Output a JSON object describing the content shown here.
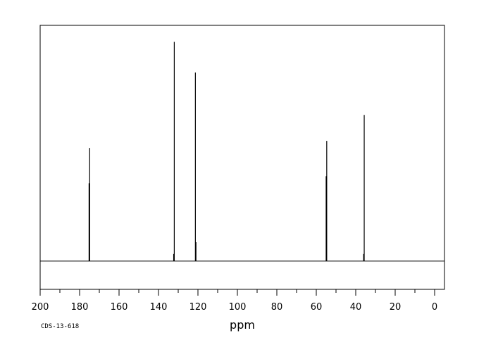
{
  "chart_data": {
    "type": "line",
    "title": "",
    "xlabel": "ppm",
    "ylabel": "",
    "xlim": [
      200,
      -5
    ],
    "x_reversed": true,
    "ylim": [
      -12,
      100
    ],
    "baseline": 0,
    "grid": false,
    "x_ticks": [
      200,
      180,
      160,
      140,
      120,
      100,
      80,
      60,
      40,
      20,
      0
    ],
    "x_tick_labels": [
      "200",
      "180",
      "160",
      "140",
      "120",
      "100",
      "80",
      "60",
      "40",
      "20",
      "0"
    ],
    "x_minor_step": 10,
    "peaks": [
      {
        "x": 174.9,
        "y": 48
      },
      {
        "x": 175.2,
        "y": 33
      },
      {
        "x": 132.0,
        "y": 93
      },
      {
        "x": 132.3,
        "y": 3
      },
      {
        "x": 121.3,
        "y": 80
      },
      {
        "x": 121.0,
        "y": 8
      },
      {
        "x": 54.7,
        "y": 51
      },
      {
        "x": 55.0,
        "y": 36
      },
      {
        "x": 35.7,
        "y": 62
      },
      {
        "x": 36.0,
        "y": 3
      }
    ]
  },
  "footer": {
    "code": "CDS-13-618"
  }
}
